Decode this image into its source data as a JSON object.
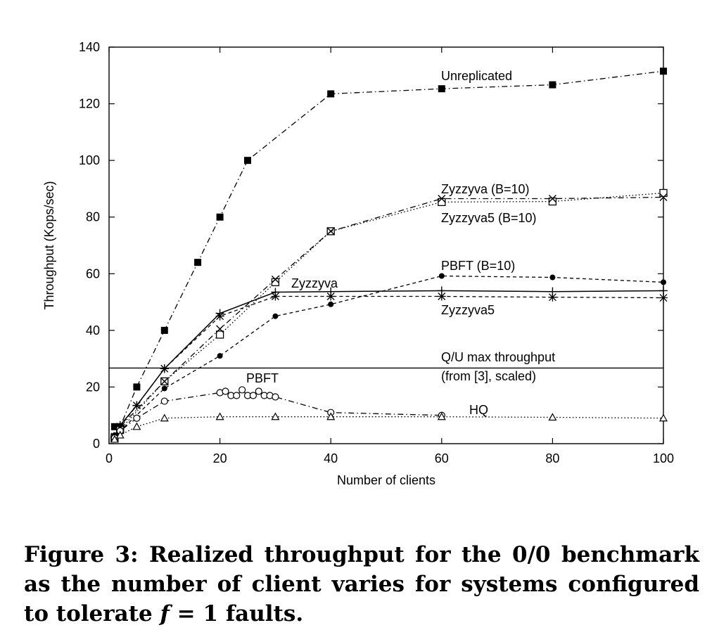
{
  "chart_data": {
    "type": "line",
    "xlabel": "Number of clients",
    "ylabel": "Throughput (Kops/sec)",
    "xlim": [
      0,
      100
    ],
    "ylim": [
      0,
      140
    ],
    "x_ticks": [
      0,
      20,
      40,
      60,
      80,
      100
    ],
    "y_ticks": [
      0,
      20,
      40,
      60,
      80,
      100,
      120,
      140
    ],
    "grid": false,
    "series": [
      {
        "name": "Unreplicated",
        "marker": "filled-square",
        "line": "dashdot",
        "x": [
          1,
          2,
          5,
          10,
          16,
          20,
          25,
          40,
          60,
          80,
          100
        ],
        "y": [
          6,
          6,
          20,
          40,
          64,
          80,
          100,
          123.5,
          125.3,
          126.7,
          131.5
        ]
      },
      {
        "name": "Zyzzyva (B=10)",
        "marker": "open-square",
        "line": "dotted",
        "x": [
          1,
          2,
          10,
          20,
          30,
          40,
          60,
          80,
          100
        ],
        "y": [
          2,
          5,
          22,
          38.5,
          57,
          75,
          85.3,
          85.5,
          88.5
        ]
      },
      {
        "name": "Zyzzyva5 (B=10)",
        "marker": "cross",
        "line": "dashdot",
        "x": [
          1,
          2,
          10,
          20,
          30,
          40,
          60,
          80,
          100
        ],
        "y": [
          2.5,
          6,
          22,
          40.5,
          58,
          75,
          86.5,
          86.5,
          87
        ]
      },
      {
        "name": "PBFT (B=10)",
        "marker": "filled-circle",
        "line": "dashed",
        "x": [
          1,
          2,
          10,
          20,
          30,
          40,
          60,
          80,
          100
        ],
        "y": [
          3,
          4.5,
          19.5,
          31,
          45,
          49.2,
          59.2,
          58.7,
          57
        ]
      },
      {
        "name": "Zyzzyva",
        "marker": "plus",
        "line": "solid",
        "x": [
          1,
          2,
          5,
          10,
          20,
          30,
          40,
          60,
          80,
          100
        ],
        "y": [
          2.5,
          6.5,
          13.5,
          26.5,
          46,
          53.5,
          53.7,
          54,
          53.7,
          54
        ]
      },
      {
        "name": "Zyzzyva5",
        "marker": "star",
        "line": "dashed",
        "x": [
          1,
          2,
          5,
          10,
          20,
          30,
          40,
          60,
          80,
          100
        ],
        "y": [
          2,
          6,
          13.5,
          26.5,
          45,
          52,
          52,
          52,
          51.7,
          51.5
        ]
      },
      {
        "name": "PBFT",
        "marker": "open-circle",
        "line": "dashdot",
        "x": [
          1,
          2,
          5,
          10,
          20,
          21,
          22,
          23,
          24,
          25,
          26,
          27,
          28,
          29,
          30,
          40,
          60
        ],
        "y": [
          2,
          4.5,
          9,
          15,
          18,
          18.5,
          17,
          17,
          19,
          17,
          17,
          18.5,
          17,
          17,
          16.5,
          11,
          10
        ]
      },
      {
        "name": "HQ",
        "marker": "open-triangle",
        "line": "dotted",
        "x": [
          1,
          2,
          5,
          10,
          20,
          30,
          40,
          60,
          80,
          100
        ],
        "y": [
          1.5,
          3,
          6,
          9,
          9.5,
          9.5,
          9.5,
          9.5,
          9.3,
          9
        ]
      }
    ],
    "reference_lines": [
      {
        "label": "Q/U max throughput",
        "label_line2": "(from [3], scaled)",
        "y": 26.7
      }
    ]
  },
  "caption": {
    "prefix": "Figure 3:  Realized throughput for the 0/0 benchmark as the number of client varies for systems configured to tolerate ",
    "variable": "f",
    "equation": " = 1",
    "suffix": " faults."
  }
}
